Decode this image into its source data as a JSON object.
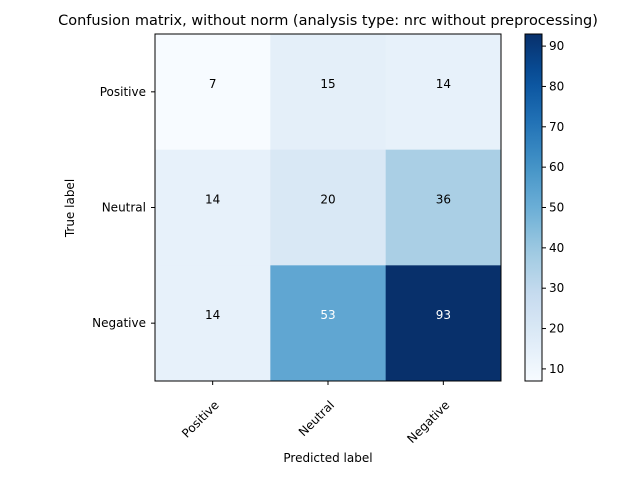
{
  "chart_data": {
    "type": "heatmap",
    "title": "Confusion matrix, without norm (analysis type: nrc without preprocessing)",
    "xlabel": "Predicted label",
    "ylabel": "True label",
    "x_categories": [
      "Positive",
      "Neutral",
      "Negative"
    ],
    "y_categories": [
      "Positive",
      "Neutral",
      "Negative"
    ],
    "values": [
      [
        7,
        15,
        14
      ],
      [
        14,
        20,
        36
      ],
      [
        14,
        53,
        93
      ]
    ],
    "colormap": "Blues",
    "colorbar": {
      "min": 7,
      "max": 93,
      "ticks": [
        10,
        20,
        30,
        40,
        50,
        60,
        70,
        80,
        90
      ]
    },
    "grid": false
  }
}
